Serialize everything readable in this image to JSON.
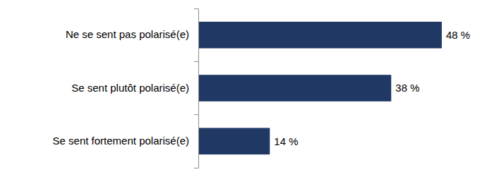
{
  "chart_data": {
    "type": "bar",
    "orientation": "horizontal",
    "categories": [
      "Ne se sent pas polarisé(e)",
      "Se sent plutôt polarisé(e)",
      "Se sent fortement polarisé(e)"
    ],
    "values": [
      48,
      38,
      14
    ],
    "value_labels": [
      "48 %",
      "38 %",
      "14 %"
    ],
    "color": "#203864",
    "data_labels": true,
    "tick_labels": "y",
    "grid": false
  }
}
